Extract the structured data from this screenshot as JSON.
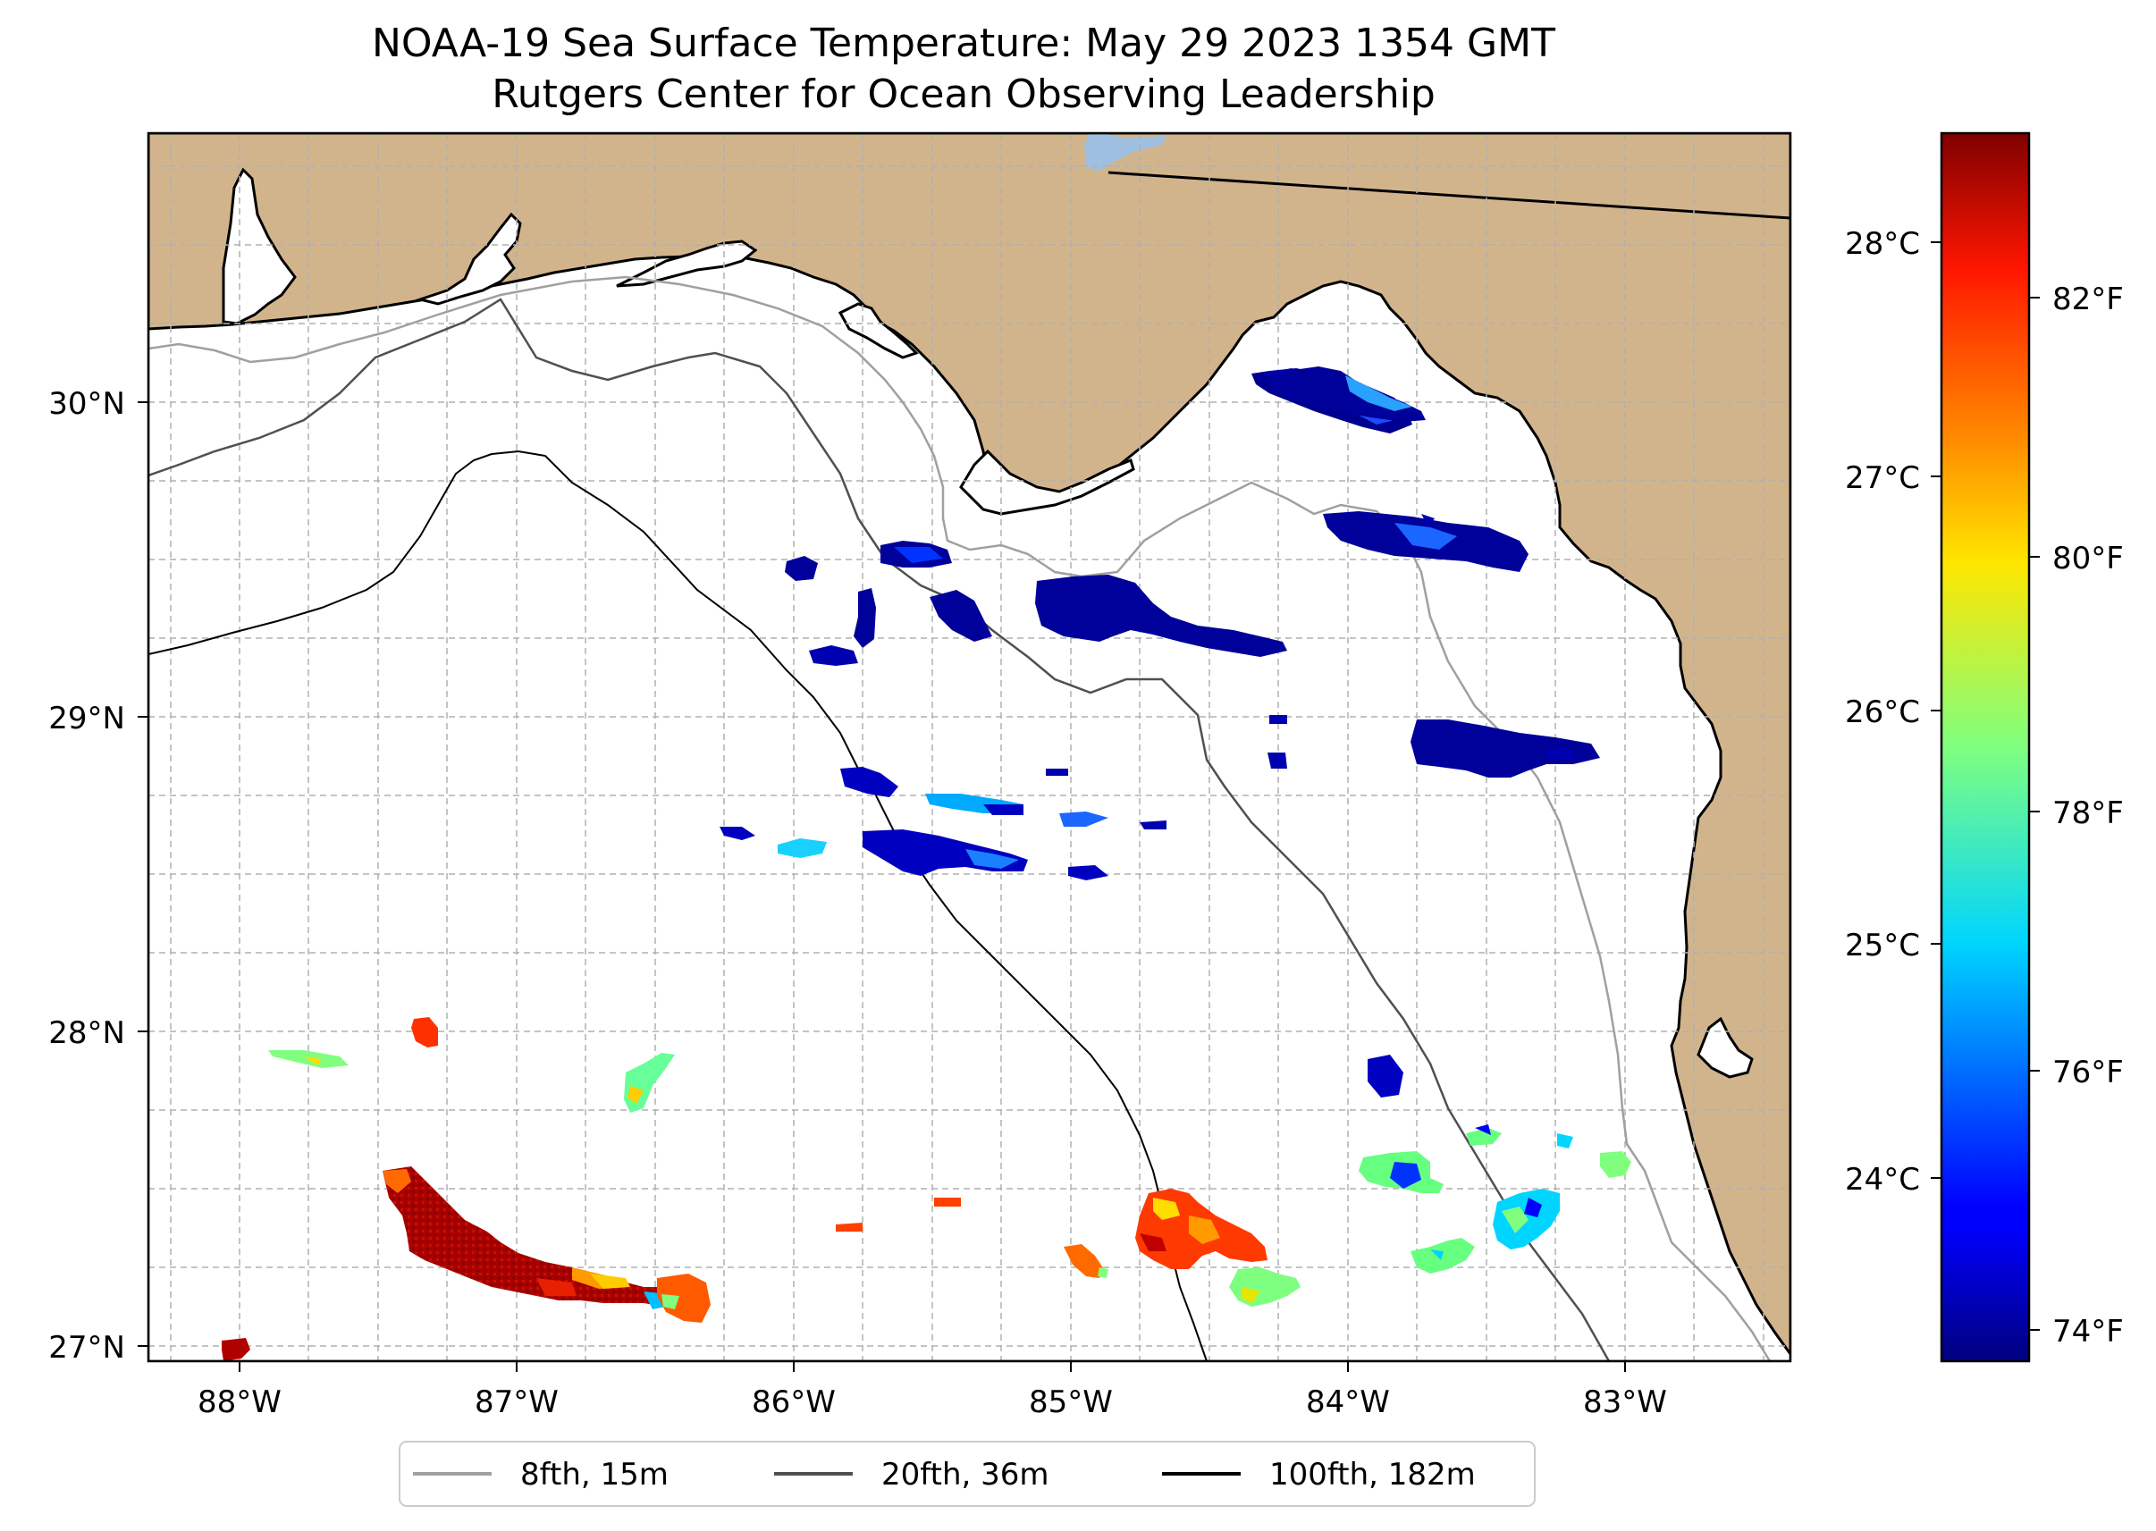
{
  "title": {
    "line1": "NOAA-19 Sea Surface Temperature: May 29 2023 1354 GMT",
    "line2": "Rutgers Center for Ocean Observing Leadership"
  },
  "colors": {
    "land": "#d2b48c",
    "ocean": "#ffffff",
    "lake": "#9fbfe0",
    "coast": "#000000",
    "grid": "#b0b0b0",
    "isobath_8fth": "#a0a0a0",
    "isobath_20fth": "#505050",
    "isobath_100fth": "#000000"
  },
  "map": {
    "lon_range": [
      -88.33,
      -82.42
    ],
    "lat_range": [
      26.93,
      30.85
    ],
    "lat_labels": [
      "30°N",
      "29°N",
      "28°N",
      "27°N"
    ],
    "lon_labels": [
      "88°W",
      "87°W",
      "86°W",
      "85°W",
      "84°W",
      "83°W"
    ]
  },
  "colorbar": {
    "celsius_labels": [
      "28°C",
      "27°C",
      "26°C",
      "25°C",
      "24°C"
    ],
    "fahrenheit_labels": [
      "82°F",
      "80°F",
      "78°F",
      "76°F",
      "74°F"
    ],
    "colormap": "jet"
  },
  "legend": {
    "items": [
      {
        "label": "8fth, 15m",
        "color": "#a0a0a0"
      },
      {
        "label": "20fth, 36m",
        "color": "#505050"
      },
      {
        "label": "100fth, 182m",
        "color": "#000000"
      }
    ]
  }
}
